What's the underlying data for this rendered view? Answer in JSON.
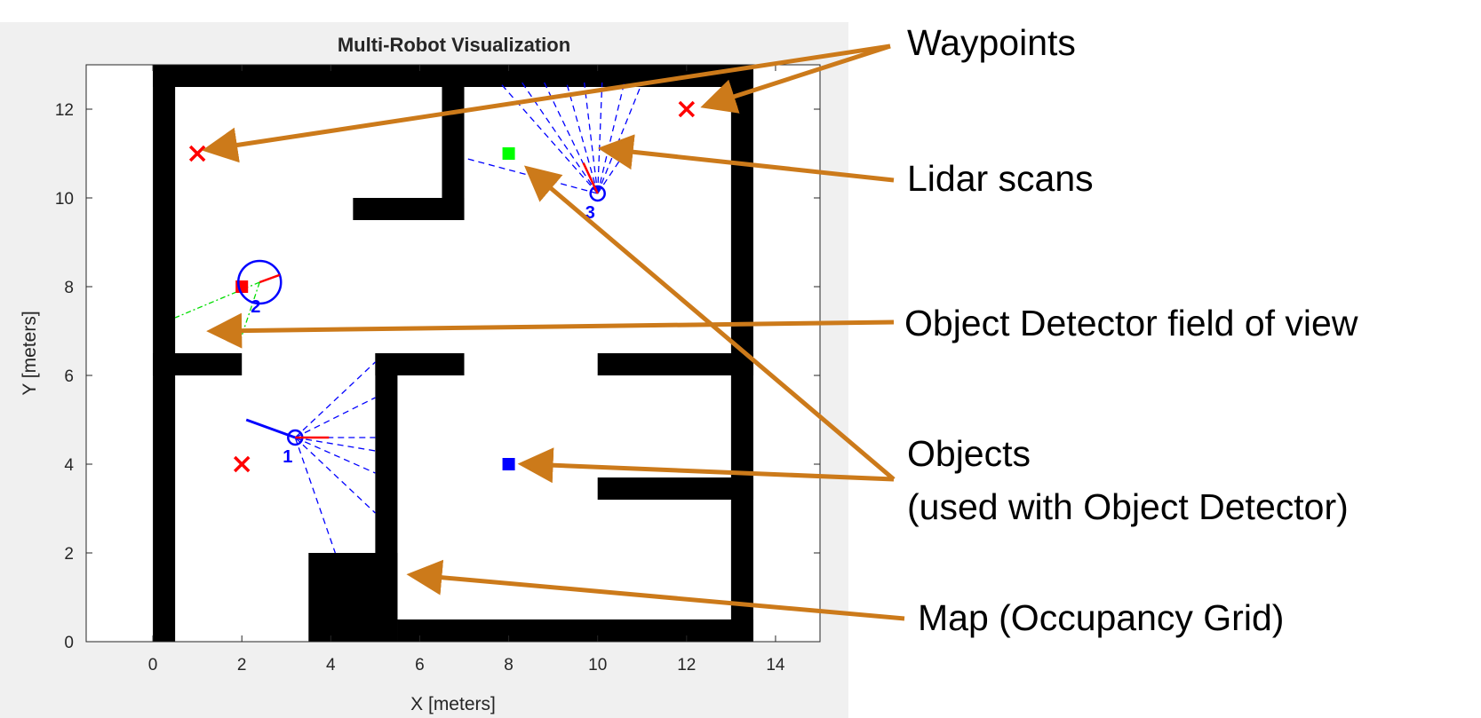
{
  "plot": {
    "title": "Multi-Robot Visualization",
    "xlabel": "X [meters]",
    "ylabel": "Y [meters]",
    "xlim": [
      -1.5,
      15
    ],
    "ylim": [
      0,
      13
    ],
    "xticks": [
      "0",
      "2",
      "4",
      "6",
      "8",
      "10",
      "12",
      "14"
    ],
    "yticks": [
      "0",
      "2",
      "4",
      "6",
      "8",
      "10",
      "12"
    ]
  },
  "map_walls": [
    [
      0,
      0,
      0.5,
      13
    ],
    [
      0,
      12.5,
      13.5,
      13
    ],
    [
      13,
      0,
      13.5,
      13
    ],
    [
      5.5,
      0,
      13.5,
      0.5
    ],
    [
      3.5,
      0,
      5.5,
      2
    ],
    [
      5,
      0,
      5.5,
      6.5
    ],
    [
      5,
      6,
      7,
      6.5
    ],
    [
      0,
      6,
      2,
      6.5
    ],
    [
      10,
      6,
      13.5,
      6.5
    ],
    [
      10,
      3.2,
      13.5,
      3.7
    ],
    [
      6.5,
      9.5,
      7,
      13
    ],
    [
      4.5,
      9.5,
      7,
      10
    ]
  ],
  "waypoints": [
    [
      1,
      11
    ],
    [
      12,
      12
    ],
    [
      2,
      4
    ]
  ],
  "objects": [
    {
      "x": 8,
      "y": 11,
      "color": "#00ff00"
    },
    {
      "x": 8,
      "y": 4,
      "color": "#0000ff"
    },
    {
      "x": 2,
      "y": 8,
      "color": "#ff0000"
    }
  ],
  "robots": [
    {
      "label": "1",
      "x": 3.2,
      "y": 4.6,
      "heading": 0,
      "lidar_origin": [
        3.2,
        4.6
      ],
      "lidar_ends": [
        [
          5,
          6.3
        ],
        [
          5,
          5.5
        ],
        [
          5,
          4.6
        ],
        [
          5,
          3.8
        ],
        [
          5,
          2.9
        ],
        [
          4.1,
          2
        ],
        [
          5.0,
          4.3
        ]
      ],
      "path": [
        [
          2.1,
          5.0
        ],
        [
          3.2,
          4.6
        ]
      ]
    },
    {
      "label": "2",
      "x": 2.4,
      "y": 8.1,
      "heading": 20,
      "circle": true,
      "fov": [
        [
          0.5,
          7.3
        ],
        [
          1.9,
          6.6
        ]
      ]
    },
    {
      "label": "3",
      "x": 10,
      "y": 10.1,
      "heading": 115,
      "lidar_origin": [
        10,
        10.1
      ],
      "lidar_ends": [
        [
          7.8,
          12.6
        ],
        [
          8.3,
          12.6
        ],
        [
          8.8,
          12.6
        ],
        [
          9.3,
          12.6
        ],
        [
          9.7,
          12.6
        ],
        [
          10.1,
          12.6
        ],
        [
          10.6,
          12.6
        ],
        [
          11.0,
          12.6
        ],
        [
          10.8,
          11.3
        ],
        [
          7.0,
          10.9
        ]
      ]
    }
  ],
  "callouts": [
    {
      "text": "Waypoints",
      "targets": [
        [
          1.3,
          11.1
        ],
        [
          12.5,
          12.1
        ]
      ]
    },
    {
      "text": "Lidar scans",
      "targets": [
        [
          10.2,
          11.1
        ]
      ]
    },
    {
      "text": "Object Detector field of view",
      "targets": [
        [
          1.4,
          7.0
        ]
      ]
    },
    {
      "text": "Objects",
      "text2": "(used with Object Detector)",
      "targets": [
        [
          8.5,
          10.6
        ],
        [
          8.4,
          4.0
        ]
      ]
    },
    {
      "text": "Map (Occupancy Grid)",
      "targets": [
        [
          5.9,
          1.5
        ]
      ]
    }
  ],
  "colors": {
    "arrow": "#cc7a1a",
    "waypoint": "#ff0000",
    "lidar": "#0000ff",
    "fov": "#00dd00",
    "robot": "#0000ff",
    "heading": "#ff0000",
    "wall": "#000000",
    "panel": "#f0f0f0"
  }
}
